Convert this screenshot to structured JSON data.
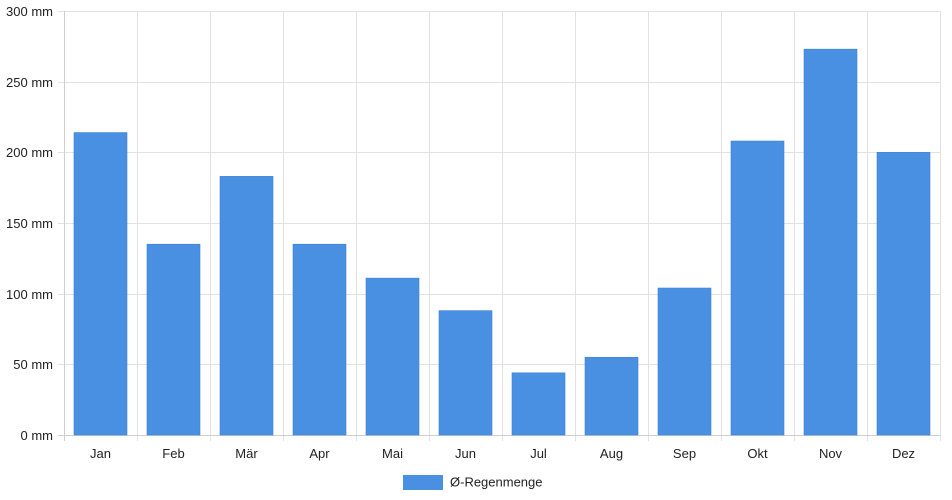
{
  "chart_data": {
    "type": "bar",
    "categories": [
      "Jan",
      "Feb",
      "Mär",
      "Apr",
      "Mai",
      "Jun",
      "Jul",
      "Aug",
      "Sep",
      "Okt",
      "Nov",
      "Dez"
    ],
    "series": [
      {
        "name": "Ø-Regenmenge",
        "color": "#4a90e2",
        "values": [
          214,
          135,
          183,
          135,
          111,
          88,
          44,
          55,
          104,
          208,
          273,
          200
        ]
      }
    ],
    "y_ticks": [
      "0 mm",
      "50 mm",
      "100 mm",
      "150 mm",
      "200 mm",
      "250 mm",
      "300 mm"
    ],
    "ylim": [
      0,
      300
    ],
    "grid": true,
    "legend_position": "bottom-center",
    "title": "",
    "xlabel": "",
    "ylabel": ""
  }
}
